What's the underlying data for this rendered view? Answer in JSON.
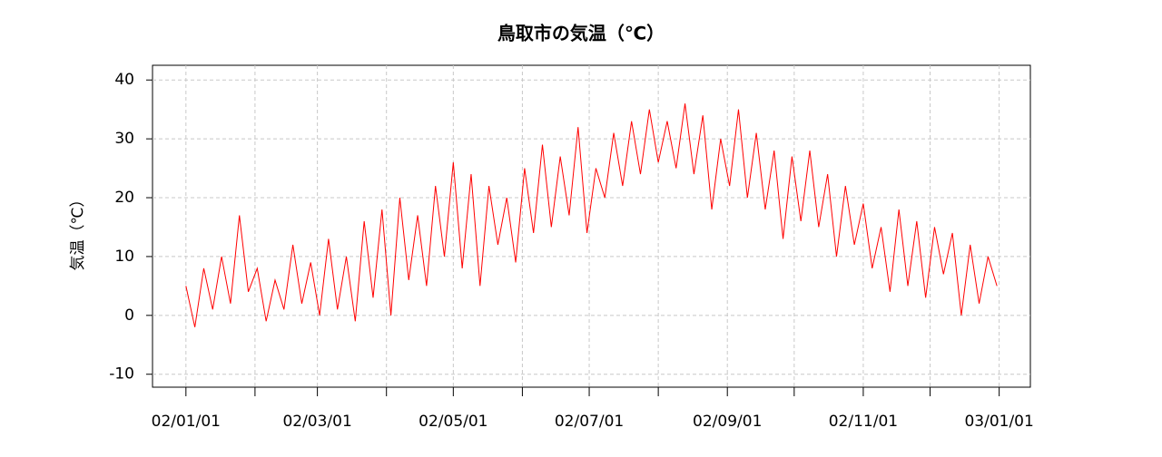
{
  "chart_data": {
    "type": "line",
    "title": "鳥取市の気温（℃）",
    "y_label": "気温（℃）",
    "x": [
      "02/01/01",
      "02/01/05",
      "02/01/09",
      "02/01/13",
      "02/01/17",
      "02/01/21",
      "02/01/25",
      "02/01/29",
      "02/02/02",
      "02/02/06",
      "02/02/10",
      "02/02/14",
      "02/02/18",
      "02/02/22",
      "02/02/26",
      "02/03/02",
      "02/03/06",
      "02/03/10",
      "02/03/14",
      "02/03/18",
      "02/03/22",
      "02/03/26",
      "02/03/30",
      "02/04/03",
      "02/04/07",
      "02/04/11",
      "02/04/15",
      "02/04/19",
      "02/04/23",
      "02/04/27",
      "02/05/01",
      "02/05/05",
      "02/05/09",
      "02/05/13",
      "02/05/17",
      "02/05/21",
      "02/05/25",
      "02/05/29",
      "02/06/02",
      "02/06/06",
      "02/06/10",
      "02/06/14",
      "02/06/18",
      "02/06/22",
      "02/06/26",
      "02/06/30",
      "02/07/04",
      "02/07/08",
      "02/07/12",
      "02/07/16",
      "02/07/20",
      "02/07/24",
      "02/07/28",
      "02/08/01",
      "02/08/05",
      "02/08/09",
      "02/08/13",
      "02/08/17",
      "02/08/21",
      "02/08/25",
      "02/08/29",
      "02/09/02",
      "02/09/06",
      "02/09/10",
      "02/09/14",
      "02/09/18",
      "02/09/22",
      "02/09/26",
      "02/09/30",
      "02/10/04",
      "02/10/08",
      "02/10/12",
      "02/10/16",
      "02/10/20",
      "02/10/24",
      "02/10/28",
      "02/11/01",
      "02/11/05",
      "02/11/09",
      "02/11/13",
      "02/11/17",
      "02/11/21",
      "02/11/25",
      "02/11/29",
      "02/12/03",
      "02/12/07",
      "02/12/11",
      "02/12/15",
      "02/12/19",
      "02/12/23",
      "02/12/27",
      "02/12/31"
    ],
    "series": [
      {
        "name": "気温",
        "color": "#ff0000",
        "values": [
          5,
          -2,
          8,
          1,
          10,
          2,
          17,
          4,
          8,
          -1,
          6,
          1,
          12,
          2,
          9,
          0,
          13,
          1,
          10,
          -1,
          16,
          3,
          18,
          0,
          20,
          6,
          17,
          5,
          22,
          10,
          26,
          8,
          24,
          5,
          22,
          12,
          20,
          9,
          25,
          14,
          29,
          15,
          27,
          17,
          32,
          14,
          25,
          20,
          31,
          22,
          33,
          24,
          35,
          26,
          33,
          25,
          36,
          24,
          34,
          18,
          30,
          22,
          35,
          20,
          31,
          18,
          28,
          13,
          27,
          16,
          28,
          15,
          24,
          10,
          22,
          12,
          19,
          8,
          15,
          4,
          18,
          5,
          16,
          3,
          15,
          7,
          14,
          0,
          12,
          2,
          10,
          5
        ]
      }
    ],
    "xlim": [
      "01/12/17",
      "03/01/15"
    ],
    "xticks": [
      "02/01/01",
      "02/03/01",
      "02/05/01",
      "02/07/01",
      "02/09/01",
      "02/11/01",
      "03/01/01"
    ],
    "xticks_minor": [
      "02/02/01",
      "02/04/01",
      "02/06/01",
      "02/08/01",
      "02/10/01",
      "02/12/01"
    ],
    "ylim": [
      -12.2,
      42.5
    ],
    "yticks": [
      -10,
      0,
      10,
      20,
      30,
      40
    ],
    "grid": true
  }
}
